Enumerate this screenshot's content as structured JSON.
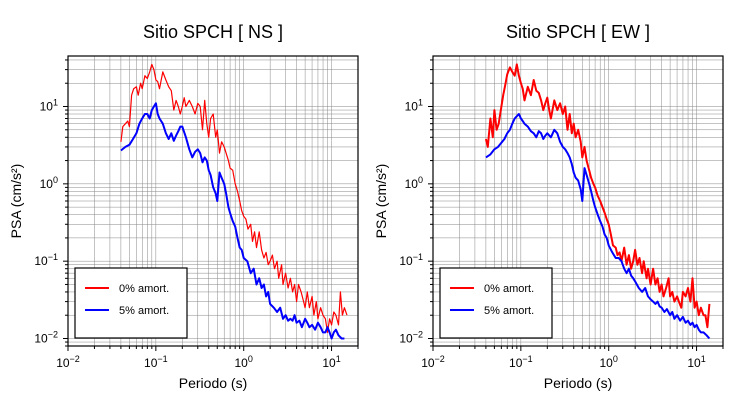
{
  "chart_data": [
    {
      "type": "line",
      "title": "Sitio SPCH [ NS ]",
      "xlabel": "Periodo (s)",
      "ylabel": "PSA (cm/s²)",
      "xscale": "log",
      "yscale": "log",
      "xlim": [
        0.01,
        20
      ],
      "ylim": [
        0.008,
        45
      ],
      "grid": true,
      "legend_position": "bottom-left",
      "xticks": [
        {
          "value": 0.01,
          "base": "10",
          "exp": "−2"
        },
        {
          "value": 0.1,
          "base": "10",
          "exp": "−1"
        },
        {
          "value": 1,
          "base": "10",
          "exp": "0"
        },
        {
          "value": 10,
          "base": "10",
          "exp": "1"
        }
      ],
      "yticks": [
        {
          "value": 0.01,
          "base": "10",
          "exp": "−2"
        },
        {
          "value": 0.1,
          "base": "10",
          "exp": "−1"
        },
        {
          "value": 1,
          "base": "10",
          "exp": "0"
        },
        {
          "value": 10,
          "base": "10",
          "exp": "1"
        }
      ],
      "series": [
        {
          "name": "0% amort.",
          "color": "#ff0000",
          "width": 1.2,
          "x": [
            0.04,
            0.042,
            0.045,
            0.048,
            0.05,
            0.053,
            0.056,
            0.06,
            0.063,
            0.067,
            0.07,
            0.075,
            0.08,
            0.085,
            0.09,
            0.095,
            0.1,
            0.105,
            0.11,
            0.12,
            0.13,
            0.14,
            0.15,
            0.16,
            0.17,
            0.18,
            0.19,
            0.2,
            0.21,
            0.22,
            0.24,
            0.26,
            0.28,
            0.3,
            0.32,
            0.34,
            0.36,
            0.38,
            0.4,
            0.42,
            0.45,
            0.48,
            0.5,
            0.53,
            0.56,
            0.6,
            0.63,
            0.67,
            0.7,
            0.75,
            0.8,
            0.85,
            0.9,
            0.95,
            1.0,
            1.06,
            1.12,
            1.2,
            1.26,
            1.33,
            1.4,
            1.5,
            1.6,
            1.7,
            1.8,
            1.9,
            2.0,
            2.12,
            2.24,
            2.4,
            2.5,
            2.7,
            2.8,
            3.0,
            3.2,
            3.4,
            3.6,
            3.8,
            4.0,
            4.2,
            4.5,
            4.8,
            5.0,
            5.3,
            5.6,
            6.0,
            6.3,
            6.7,
            7.0,
            7.5,
            8.0,
            8.5,
            9.0,
            9.5,
            10,
            10.6,
            11.2,
            12,
            12.6,
            13.3,
            14,
            15
          ],
          "y": [
            3.5,
            5.5,
            6,
            6.5,
            5.5,
            14,
            17,
            18,
            14,
            20,
            17,
            25,
            23,
            28,
            35,
            30,
            22,
            21,
            17,
            28,
            22,
            18,
            16,
            9,
            12,
            10,
            8,
            10,
            13,
            10,
            12,
            10,
            8,
            11,
            10,
            5,
            12,
            6,
            4,
            7,
            8,
            4,
            5,
            2.5,
            3.5,
            3,
            2.5,
            2,
            1.6,
            1.5,
            1,
            0.8,
            0.6,
            0.45,
            0.38,
            0.35,
            0.26,
            0.3,
            0.18,
            0.24,
            0.15,
            0.24,
            0.14,
            0.11,
            0.13,
            0.09,
            0.1,
            0.12,
            0.08,
            0.1,
            0.06,
            0.09,
            0.05,
            0.07,
            0.045,
            0.06,
            0.04,
            0.05,
            0.03,
            0.05,
            0.04,
            0.03,
            0.025,
            0.04,
            0.025,
            0.035,
            0.02,
            0.03,
            0.018,
            0.025,
            0.02,
            0.018,
            0.012,
            0.018,
            0.015,
            0.022,
            0.02,
            0.015,
            0.04,
            0.02,
            0.025,
            0.02
          ]
        },
        {
          "name": "5% amort.",
          "color": "#0000ff",
          "width": 2,
          "x": [
            0.04,
            0.045,
            0.05,
            0.055,
            0.06,
            0.065,
            0.07,
            0.075,
            0.08,
            0.085,
            0.09,
            0.095,
            0.1,
            0.105,
            0.11,
            0.12,
            0.13,
            0.14,
            0.15,
            0.16,
            0.17,
            0.18,
            0.19,
            0.2,
            0.22,
            0.24,
            0.26,
            0.28,
            0.3,
            0.32,
            0.34,
            0.36,
            0.38,
            0.4,
            0.42,
            0.45,
            0.48,
            0.5,
            0.53,
            0.56,
            0.6,
            0.63,
            0.67,
            0.7,
            0.75,
            0.8,
            0.85,
            0.9,
            0.95,
            1.0,
            1.1,
            1.2,
            1.3,
            1.4,
            1.5,
            1.6,
            1.7,
            1.8,
            1.9,
            2.0,
            2.2,
            2.4,
            2.6,
            2.8,
            3.0,
            3.2,
            3.4,
            3.6,
            3.8,
            4.0,
            4.3,
            4.6,
            5.0,
            5.3,
            5.6,
            6.0,
            6.5,
            7.0,
            7.5,
            8.0,
            8.5,
            9.0,
            9.5,
            10,
            10.6,
            11.2,
            12,
            13,
            14
          ],
          "y": [
            2.7,
            3,
            3.2,
            3.8,
            4.5,
            6,
            7,
            8,
            8,
            7,
            9,
            10,
            11,
            8,
            7,
            6,
            4.5,
            3.8,
            4.5,
            3.6,
            4.2,
            4.8,
            5.5,
            5.5,
            4,
            2.8,
            2.2,
            2.6,
            2.8,
            2.5,
            1.9,
            2.2,
            2,
            1.5,
            1.3,
            0.9,
            0.75,
            0.6,
            1.4,
            1.2,
            1,
            0.75,
            0.5,
            0.42,
            0.33,
            0.28,
            0.2,
            0.15,
            0.14,
            0.11,
            0.1,
            0.07,
            0.08,
            0.05,
            0.06,
            0.045,
            0.05,
            0.035,
            0.04,
            0.028,
            0.025,
            0.022,
            0.025,
            0.018,
            0.02,
            0.017,
            0.018,
            0.017,
            0.02,
            0.016,
            0.017,
            0.014,
            0.018,
            0.016,
            0.014,
            0.015,
            0.013,
            0.016,
            0.014,
            0.012,
            0.012,
            0.014,
            0.012,
            0.01,
            0.012,
            0.013,
            0.011,
            0.01,
            0.01
          ]
        }
      ]
    },
    {
      "type": "line",
      "title": "Sitio SPCH [ EW ]",
      "xlabel": "Periodo (s)",
      "ylabel": "PSA (cm/s²)",
      "xscale": "log",
      "yscale": "log",
      "xlim": [
        0.01,
        20
      ],
      "ylim": [
        0.008,
        45
      ],
      "grid": true,
      "legend_position": "bottom-left",
      "xticks": [
        {
          "value": 0.01,
          "base": "10",
          "exp": "−2"
        },
        {
          "value": 0.1,
          "base": "10",
          "exp": "−1"
        },
        {
          "value": 1,
          "base": "10",
          "exp": "0"
        },
        {
          "value": 10,
          "base": "10",
          "exp": "1"
        }
      ],
      "yticks": [
        {
          "value": 0.01,
          "base": "10",
          "exp": "−2"
        },
        {
          "value": 0.1,
          "base": "10",
          "exp": "−1"
        },
        {
          "value": 1,
          "base": "10",
          "exp": "0"
        },
        {
          "value": 10,
          "base": "10",
          "exp": "1"
        }
      ],
      "series": [
        {
          "name": "0% amort.",
          "color": "#ff0000",
          "width": 2,
          "x": [
            0.04,
            0.042,
            0.045,
            0.048,
            0.05,
            0.053,
            0.056,
            0.06,
            0.063,
            0.067,
            0.07,
            0.075,
            0.08,
            0.085,
            0.09,
            0.095,
            0.1,
            0.105,
            0.11,
            0.12,
            0.13,
            0.14,
            0.15,
            0.16,
            0.17,
            0.18,
            0.19,
            0.2,
            0.21,
            0.22,
            0.24,
            0.26,
            0.28,
            0.3,
            0.32,
            0.34,
            0.36,
            0.38,
            0.4,
            0.42,
            0.45,
            0.48,
            0.5,
            0.53,
            0.56,
            0.6,
            0.63,
            0.67,
            0.7,
            0.75,
            0.8,
            0.85,
            0.9,
            0.95,
            1.0,
            1.06,
            1.12,
            1.2,
            1.26,
            1.33,
            1.4,
            1.5,
            1.6,
            1.7,
            1.8,
            1.9,
            2.0,
            2.12,
            2.24,
            2.4,
            2.5,
            2.7,
            2.8,
            3.0,
            3.2,
            3.4,
            3.6,
            3.8,
            4.0,
            4.2,
            4.5,
            4.8,
            5.0,
            5.3,
            5.6,
            6.0,
            6.3,
            6.7,
            7.0,
            7.5,
            8.0,
            8.5,
            9.0,
            9.5,
            10,
            10.6,
            11.2,
            12,
            12.6,
            13.3,
            14
          ],
          "y": [
            3.8,
            3,
            7,
            4,
            9,
            5,
            6,
            10,
            14,
            20,
            26,
            32,
            28,
            25,
            35,
            25,
            20,
            17,
            12,
            18,
            14,
            22,
            16,
            15,
            12,
            9,
            11,
            13,
            9,
            7,
            12,
            9,
            11,
            8,
            10,
            5,
            8,
            4.5,
            6,
            4,
            5,
            3.5,
            2.2,
            3,
            2,
            1.5,
            1.2,
            1,
            0.9,
            0.7,
            0.6,
            0.5,
            0.42,
            0.35,
            0.3,
            0.22,
            0.16,
            0.15,
            0.12,
            0.13,
            0.1,
            0.15,
            0.09,
            0.12,
            0.08,
            0.1,
            0.14,
            0.09,
            0.11,
            0.07,
            0.1,
            0.06,
            0.08,
            0.05,
            0.08,
            0.05,
            0.06,
            0.04,
            0.05,
            0.035,
            0.045,
            0.06,
            0.035,
            0.04,
            0.03,
            0.035,
            0.03,
            0.025,
            0.04,
            0.035,
            0.045,
            0.03,
            0.06,
            0.025,
            0.03,
            0.02,
            0.025,
            0.02,
            0.02,
            0.014,
            0.028
          ]
        },
        {
          "name": "5% amort.",
          "color": "#0000ff",
          "width": 2,
          "x": [
            0.04,
            0.045,
            0.05,
            0.055,
            0.06,
            0.065,
            0.07,
            0.075,
            0.08,
            0.085,
            0.09,
            0.095,
            0.1,
            0.105,
            0.11,
            0.12,
            0.13,
            0.14,
            0.15,
            0.16,
            0.17,
            0.18,
            0.19,
            0.2,
            0.22,
            0.24,
            0.26,
            0.28,
            0.3,
            0.32,
            0.34,
            0.36,
            0.38,
            0.4,
            0.42,
            0.45,
            0.48,
            0.5,
            0.53,
            0.56,
            0.6,
            0.63,
            0.67,
            0.7,
            0.75,
            0.8,
            0.85,
            0.9,
            0.95,
            1.0,
            1.1,
            1.2,
            1.3,
            1.4,
            1.5,
            1.6,
            1.7,
            1.8,
            1.9,
            2.0,
            2.2,
            2.4,
            2.6,
            2.8,
            3.0,
            3.2,
            3.4,
            3.6,
            3.8,
            4.0,
            4.3,
            4.6,
            5.0,
            5.3,
            5.6,
            6.0,
            6.5,
            7.0,
            7.5,
            8.0,
            8.5,
            9.0,
            9.5,
            10,
            10.6,
            11.2,
            12,
            13,
            14
          ],
          "y": [
            2.2,
            2.4,
            2.8,
            3,
            3.4,
            3.8,
            4.5,
            5,
            6,
            7,
            7.5,
            8,
            7,
            6.5,
            6,
            5.5,
            4.8,
            4.5,
            4,
            4.8,
            4.5,
            3.8,
            4.2,
            4.5,
            4,
            5,
            4.5,
            3.5,
            3,
            2.8,
            2.5,
            2.2,
            1.8,
            1.4,
            1.2,
            1.1,
            0.85,
            0.6,
            1.6,
            1.3,
            1.0,
            0.8,
            0.6,
            0.5,
            0.4,
            0.33,
            0.28,
            0.22,
            0.2,
            0.16,
            0.13,
            0.11,
            0.11,
            0.1,
            0.08,
            0.07,
            0.08,
            0.065,
            0.06,
            0.055,
            0.045,
            0.04,
            0.045,
            0.035,
            0.032,
            0.03,
            0.028,
            0.03,
            0.026,
            0.025,
            0.022,
            0.024,
            0.02,
            0.022,
            0.018,
            0.02,
            0.017,
            0.019,
            0.016,
            0.017,
            0.015,
            0.016,
            0.014,
            0.015,
            0.013,
            0.012,
            0.012,
            0.011,
            0.01
          ]
        }
      ]
    }
  ]
}
